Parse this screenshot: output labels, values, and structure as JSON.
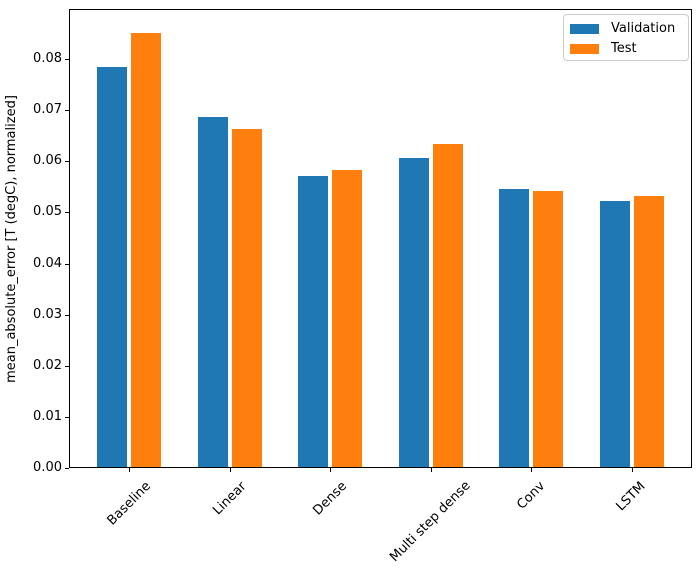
{
  "chart_data": {
    "type": "bar",
    "title": "",
    "xlabel": "",
    "ylabel": "mean_absolute_error [T (degC), normalized]",
    "categories": [
      "Baseline",
      "Linear",
      "Dense",
      "Multi step dense",
      "Conv",
      "LSTM"
    ],
    "series": [
      {
        "name": "Validation",
        "color": "#1f77b4",
        "values": [
          0.0785,
          0.0686,
          0.0572,
          0.0606,
          0.0545,
          0.0523
        ]
      },
      {
        "name": "Test",
        "color": "#ff7f0e",
        "values": [
          0.0852,
          0.0663,
          0.0583,
          0.0633,
          0.0542,
          0.0532
        ]
      }
    ],
    "yticks": [
      "0.00",
      "0.01",
      "0.02",
      "0.03",
      "0.04",
      "0.05",
      "0.06",
      "0.07",
      "0.08"
    ],
    "ylim": [
      0,
      0.0898
    ],
    "xlim": [
      -0.6,
      5.6
    ],
    "bar_width": 0.3,
    "bar_group_offset": 0.17,
    "legend_position": "upper right",
    "grid": false,
    "x_tick_rotation_deg": 45
  }
}
